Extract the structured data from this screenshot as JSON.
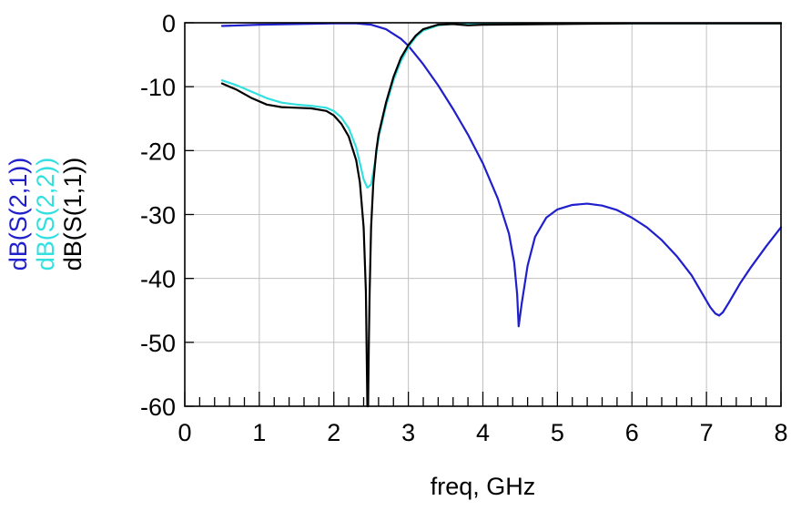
{
  "chart_data": {
    "type": "line",
    "title": "",
    "xlabel": "freq, GHz",
    "ylabel": "",
    "xlim": [
      0,
      8
    ],
    "ylim": [
      -60,
      0
    ],
    "x_ticks": [
      0,
      1,
      2,
      3,
      4,
      5,
      6,
      7,
      8
    ],
    "y_ticks": [
      0,
      -10,
      -20,
      -30,
      -40,
      -50,
      -60
    ],
    "x_tick_labels": [
      "0",
      "1",
      "2",
      "3",
      "4",
      "5",
      "6",
      "7",
      "8"
    ],
    "y_tick_labels": [
      "0",
      "-10",
      "-20",
      "-30",
      "-40",
      "-50",
      "-60"
    ],
    "x_minor_step": 0.2,
    "grid": true,
    "legend_position": "left, rotated vertical",
    "series": [
      {
        "name": "dB(S(2,1))",
        "color": "#1f1fcc",
        "x": [
          0.5,
          1.0,
          1.5,
          2.0,
          2.3,
          2.5,
          2.7,
          2.9,
          3.0,
          3.2,
          3.4,
          3.6,
          3.8,
          4.0,
          4.2,
          4.35,
          4.42,
          4.46,
          4.48,
          4.52,
          4.6,
          4.7,
          4.85,
          5.0,
          5.2,
          5.4,
          5.6,
          5.8,
          6.0,
          6.2,
          6.4,
          6.6,
          6.8,
          6.95,
          7.05,
          7.12,
          7.17,
          7.22,
          7.3,
          7.45,
          7.6,
          7.8,
          8.0
        ],
        "y": [
          -0.5,
          -0.3,
          -0.2,
          -0.1,
          -0.1,
          -0.3,
          -1.0,
          -2.5,
          -3.6,
          -6.5,
          -9.8,
          -13.5,
          -17.5,
          -22.0,
          -27.5,
          -33.0,
          -37.5,
          -42.5,
          -47.5,
          -44.0,
          -38.0,
          -33.5,
          -30.5,
          -29.2,
          -28.5,
          -28.3,
          -28.6,
          -29.3,
          -30.5,
          -32.0,
          -34.0,
          -36.5,
          -39.5,
          -42.5,
          -44.5,
          -45.5,
          -45.8,
          -45.3,
          -43.8,
          -40.8,
          -38.2,
          -35.0,
          -32.0
        ]
      },
      {
        "name": "dB(S(2,2))",
        "color": "#33e0e0",
        "x": [
          0.5,
          0.7,
          0.9,
          1.1,
          1.3,
          1.5,
          1.7,
          1.9,
          2.0,
          2.1,
          2.2,
          2.3,
          2.35,
          2.4,
          2.45,
          2.5,
          2.55,
          2.6,
          2.7,
          2.8,
          2.9,
          3.0,
          3.1,
          3.2,
          3.4,
          3.6,
          3.8,
          4.0,
          5.0,
          6.0,
          7.0,
          8.0
        ],
        "y": [
          -9.0,
          -9.8,
          -10.8,
          -11.8,
          -12.5,
          -12.8,
          -13.0,
          -13.3,
          -13.8,
          -14.8,
          -16.5,
          -19.5,
          -22.0,
          -24.5,
          -25.8,
          -25.3,
          -22.0,
          -18.0,
          -13.0,
          -9.0,
          -6.0,
          -3.8,
          -2.2,
          -1.2,
          -0.4,
          -0.15,
          -0.1,
          -0.1,
          -0.1,
          -0.1,
          -0.1,
          -0.1
        ]
      },
      {
        "name": "dB(S(1,1))",
        "color": "#000000",
        "x": [
          0.5,
          0.7,
          0.9,
          1.1,
          1.3,
          1.5,
          1.7,
          1.9,
          2.0,
          2.1,
          2.2,
          2.3,
          2.35,
          2.4,
          2.43,
          2.45,
          2.46,
          2.47,
          2.48,
          2.5,
          2.53,
          2.57,
          2.6,
          2.7,
          2.8,
          2.9,
          3.0,
          3.1,
          3.2,
          3.4,
          3.6,
          3.8,
          4.0,
          5.0,
          6.0,
          7.0,
          8.0
        ],
        "y": [
          -9.5,
          -10.5,
          -11.8,
          -12.8,
          -13.2,
          -13.3,
          -13.4,
          -13.8,
          -14.5,
          -15.8,
          -17.8,
          -21.5,
          -25.0,
          -32.0,
          -42.0,
          -60.0,
          -60.0,
          -50.0,
          -42.5,
          -32.0,
          -25.0,
          -20.0,
          -17.5,
          -12.5,
          -8.5,
          -5.5,
          -3.5,
          -2.0,
          -1.0,
          -0.3,
          -0.2,
          -0.4,
          -0.3,
          -0.2,
          -0.1,
          -0.1,
          -0.1
        ]
      }
    ]
  }
}
